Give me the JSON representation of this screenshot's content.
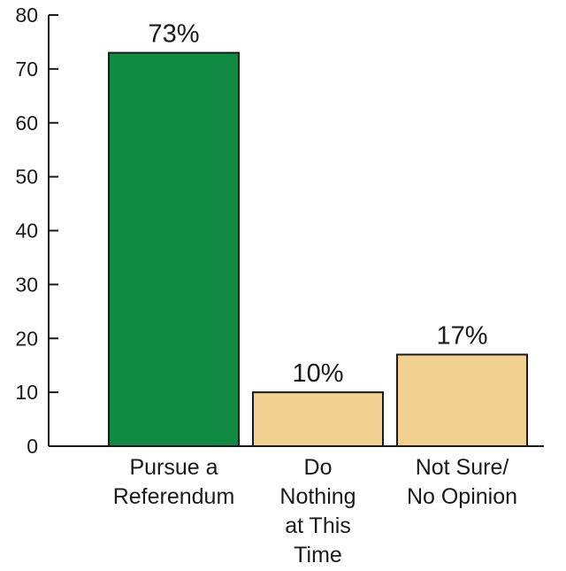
{
  "chart_data": {
    "type": "bar",
    "title": "",
    "xlabel": "",
    "ylabel": "",
    "ylim": [
      0,
      80
    ],
    "yticks": [
      0,
      10,
      20,
      30,
      40,
      50,
      60,
      70,
      80
    ],
    "categories": [
      [
        "Pursue a",
        "Referendum"
      ],
      [
        "Do",
        "Nothing",
        "at This",
        "Time"
      ],
      [
        "Not Sure/",
        "No Opinion"
      ]
    ],
    "values": [
      73,
      10,
      17
    ],
    "data_labels": [
      "73%",
      "10%",
      "17%"
    ],
    "bar_colors": [
      "#108a42",
      "#f2d08f",
      "#f2d08f"
    ],
    "bar_outline": "#1a1a1a",
    "axis_color": "#1a1a1a",
    "grid": false,
    "legend": "none"
  }
}
